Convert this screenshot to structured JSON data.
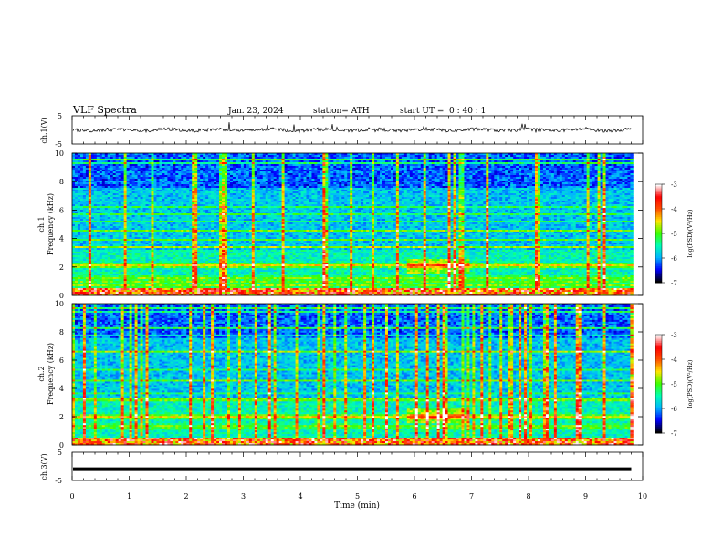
{
  "header": {
    "title": "VLF  Spectra",
    "date": "Jan. 23, 2024",
    "station": "station= ATH",
    "start_label": "start  UT  =",
    "start_value": "0  : 40 : 1"
  },
  "chart_data": [
    {
      "type": "line",
      "ylabel": "ch.1(V)",
      "ylim": [
        -5,
        5
      ],
      "yticks": [
        "5",
        "-5"
      ],
      "baseline": 0,
      "xlim": [
        0,
        10
      ],
      "xlabel": "Time  (min)"
    },
    {
      "type": "heatmap",
      "ylabel_channel": "ch.1",
      "ylabel": "Frequency  (kHz)",
      "ylim": [
        0,
        10
      ],
      "yticks": [
        "0",
        "2",
        "4",
        "6",
        "8",
        "10"
      ],
      "xlim": [
        0,
        9.83
      ],
      "colorbar": {
        "label": "log(PSD)(V²/Hz)",
        "range": [
          -7,
          -3
        ],
        "ticks": [
          "-3",
          "-4",
          "-5",
          "-6",
          "-7"
        ]
      },
      "intense_bands_khz": [
        2.1,
        1.2,
        0.7
      ],
      "event_window_min": [
        5.85,
        6.95
      ]
    },
    {
      "type": "heatmap",
      "ylabel_channel": "ch.2",
      "ylabel": "Frequency  (kHz)",
      "ylim": [
        0,
        10
      ],
      "yticks": [
        "0",
        "2",
        "4",
        "6",
        "8",
        "10"
      ],
      "xlim": [
        0,
        9.83
      ],
      "colorbar": {
        "label": "log(PSD)(V²/Hz)",
        "range": [
          -7,
          -3
        ],
        "ticks": [
          "-3",
          "-4",
          "-5",
          "-6",
          "-7"
        ]
      },
      "intense_bands_khz": [
        2.0,
        1.3
      ],
      "event_window_min": [
        5.85,
        6.95
      ]
    },
    {
      "type": "line",
      "ylabel": "ch.3(V)",
      "ylim": [
        -5,
        5
      ],
      "yticks": [
        "5",
        "-5"
      ],
      "baseline": -1,
      "xlim": [
        0,
        10
      ],
      "xlabel": "Time  (min)",
      "xticks": [
        "0",
        "1",
        "2",
        "3",
        "4",
        "5",
        "6",
        "7",
        "8",
        "9",
        "10"
      ]
    }
  ],
  "colors": {
    "colormap": [
      "#000000",
      "#0000ff",
      "#00b4ff",
      "#00ffb4",
      "#3cff00",
      "#ffe600",
      "#ff5000",
      "#ff0000",
      "#ffffff"
    ]
  }
}
